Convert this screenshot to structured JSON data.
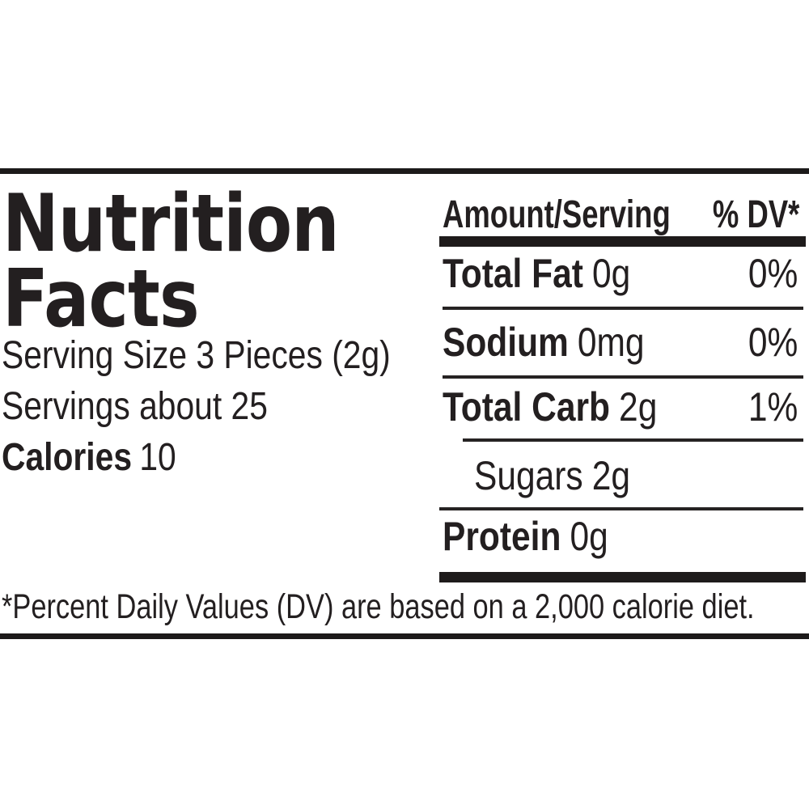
{
  "label": {
    "title_line1": "Nutrition",
    "title_line2": "Facts",
    "serving_size": "Serving Size 3 Pieces (2g)",
    "servings": "Servings about 25",
    "calories_label": "Calories",
    "calories_value": "10",
    "columns": {
      "amount_header": "Amount/Serving",
      "dv_header": "% DV*"
    },
    "rows": [
      {
        "name": "Total Fat",
        "amount": "0g",
        "dv": "0%"
      },
      {
        "name": "Sodium",
        "amount": "0mg",
        "dv": "0%"
      },
      {
        "name": "Total Carb",
        "amount": "2g",
        "dv": "1%"
      },
      {
        "name": "Sugars",
        "amount": "2g",
        "dv": ""
      },
      {
        "name": "Protein",
        "amount": "0g",
        "dv": ""
      }
    ],
    "footnote": "*Percent Daily Values (DV) are based on a 2,000 calorie diet.",
    "colors": {
      "text": "#231f20",
      "rule": "#1c1a1a",
      "background": "#ffffff"
    }
  }
}
